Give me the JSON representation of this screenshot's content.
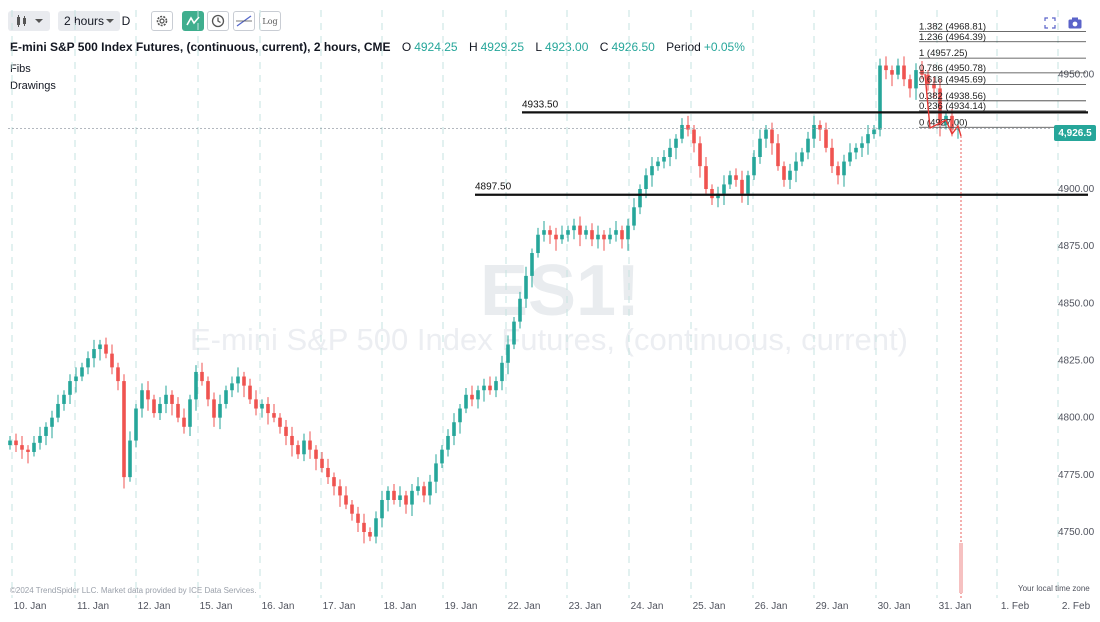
{
  "toolbar": {
    "interval_label": "2 hours",
    "interval_suffix": "D",
    "log_label": "Log"
  },
  "header": {
    "symbol_title": "E-mini S&P 500 Index Futures, (continuous, current), 2 hours, CME",
    "open_label": "O",
    "open_value": "4924.25",
    "high_label": "H",
    "high_value": "4929.25",
    "low_label": "L",
    "low_value": "4923.00",
    "close_label": "C",
    "close_value": "4926.50",
    "period_label": "Period",
    "period_value": "+0.05%"
  },
  "panels": {
    "fibs_label": "Fibs",
    "drawings_label": "Drawings"
  },
  "watermark": {
    "ticker": "ES1!",
    "name": "E-mini S&P 500 Index Futures, (continuous, current)"
  },
  "footer": {
    "copyright": "©2024 TrendSpider LLC. Market data provided by ICE Data Services.",
    "timezone": "Your local time zone"
  },
  "price_tag": "4,926.5",
  "colors": {
    "up": "#26a69a",
    "down": "#ef5350",
    "accent": "#3fae8e"
  },
  "chart_data": {
    "type": "candlestick",
    "ylim": [
      4740,
      4972
    ],
    "y_ticks": [
      4750,
      4775,
      4800,
      4825,
      4850,
      4875,
      4900,
      4925,
      4950
    ],
    "y_tick_labels": [
      "4750.00",
      "4775.00",
      "4800.00",
      "4825.00",
      "4850.00",
      "4875.00",
      "4900.00",
      "",
      "4950.00"
    ],
    "x_labels": [
      "10. Jan",
      "11. Jan",
      "12. Jan",
      "15. Jan",
      "16. Jan",
      "17. Jan",
      "18. Jan",
      "19. Jan",
      "22. Jan",
      "23. Jan",
      "24. Jan",
      "25. Jan",
      "26. Jan",
      "29. Jan",
      "30. Jan",
      "31. Jan",
      "1. Feb",
      "2. Feb"
    ],
    "horizontal_lines": [
      {
        "label": "4933.50",
        "price": 4933.5
      },
      {
        "label": "4897.50",
        "price": 4897.5
      }
    ],
    "fib_levels": [
      {
        "label": "1.382 (4968.81)",
        "price": 4968.81
      },
      {
        "label": "1.236 (4964.39)",
        "price": 4964.39
      },
      {
        "label": "1 (4957.25)",
        "price": 4957.25
      },
      {
        "label": "0.786 (4950.78)",
        "price": 4950.78
      },
      {
        "label": "0.618 (4945.69)",
        "price": 4945.69
      },
      {
        "label": "0.382 (4938.56)",
        "price": 4938.56
      },
      {
        "label": "0.236 (4934.14)",
        "price": 4934.14
      },
      {
        "label": "0 (4927.00)",
        "price": 4927.0
      }
    ],
    "last_price": 4926.5,
    "candles_close": [
      4790,
      4788,
      4786,
      4785,
      4789,
      4792,
      4796,
      4800,
      4806,
      4810,
      4816,
      4818,
      4822,
      4826,
      4830,
      4832,
      4828,
      4822,
      4816,
      4774,
      4790,
      4804,
      4812,
      4808,
      4802,
      4806,
      4810,
      4806,
      4800,
      4796,
      4808,
      4820,
      4816,
      4808,
      4800,
      4806,
      4812,
      4815,
      4818,
      4814,
      4808,
      4804,
      4806,
      4802,
      4800,
      4796,
      4792,
      4788,
      4784,
      4790,
      4786,
      4782,
      4778,
      4774,
      4770,
      4766,
      4762,
      4758,
      4754,
      4750,
      4748,
      4756,
      4764,
      4768,
      4764,
      4766,
      4762,
      4768,
      4770,
      4766,
      4772,
      4780,
      4786,
      4792,
      4798,
      4804,
      4810,
      4808,
      4812,
      4814,
      4812,
      4816,
      4824,
      4832,
      4842,
      4852,
      4862,
      4872,
      4880,
      4882,
      4880,
      4878,
      4880,
      4882,
      4884,
      4880,
      4882,
      4878,
      4880,
      4878,
      4880,
      4882,
      4878,
      4884,
      4892,
      4900,
      4906,
      4910,
      4912,
      4914,
      4918,
      4922,
      4928,
      4926,
      4920,
      4910,
      4900,
      4896,
      4898,
      4902,
      4906,
      4904,
      4898,
      4906,
      4914,
      4922,
      4926,
      4920,
      4910,
      4904,
      4908,
      4912,
      4916,
      4922,
      4928,
      4926,
      4918,
      4910,
      4906,
      4912,
      4916,
      4918,
      4920,
      4924,
      4926,
      4954,
      4952,
      4950,
      4954,
      4948,
      4944,
      4952,
      4950,
      4946,
      4944,
      4928,
      4932,
      4926,
      4926.5
    ]
  }
}
